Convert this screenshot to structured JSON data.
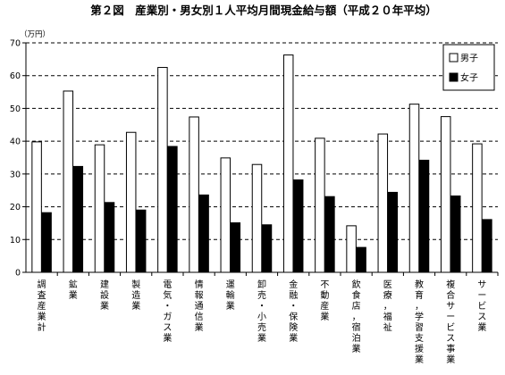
{
  "chart_data": {
    "type": "bar",
    "title": "第２図　産業別・男女別１人平均月間現金給与額（平成２０年平均）",
    "ylabel": "（万円）",
    "xlabel": "",
    "ylim": [
      0,
      70
    ],
    "yticks": [
      0,
      10,
      20,
      30,
      40,
      50,
      60,
      70
    ],
    "grid": true,
    "legend_position": "top-right",
    "categories": [
      "調査産業計",
      "鉱業",
      "建設業",
      "製造業",
      "電気・ガス業",
      "情報通信業",
      "運輸業",
      "卸売・小売業",
      "金融・保険業",
      "不動産業",
      "飲食店，宿泊業",
      "医療，福祉",
      "教育，学習支援業",
      "複合サービス事業",
      "サービス業"
    ],
    "series": [
      {
        "name": "男子",
        "color": "#ffffff",
        "values": [
          39.8,
          55.3,
          38.9,
          42.7,
          62.5,
          47.4,
          34.9,
          32.9,
          66.3,
          40.9,
          14.2,
          42.2,
          51.3,
          47.5,
          39.2
        ]
      },
      {
        "name": "女子",
        "color": "#000000",
        "values": [
          18.2,
          32.3,
          21.3,
          19.0,
          38.4,
          23.6,
          15.1,
          14.5,
          28.2,
          23.1,
          7.6,
          24.4,
          34.2,
          23.3,
          16.1
        ]
      }
    ]
  }
}
